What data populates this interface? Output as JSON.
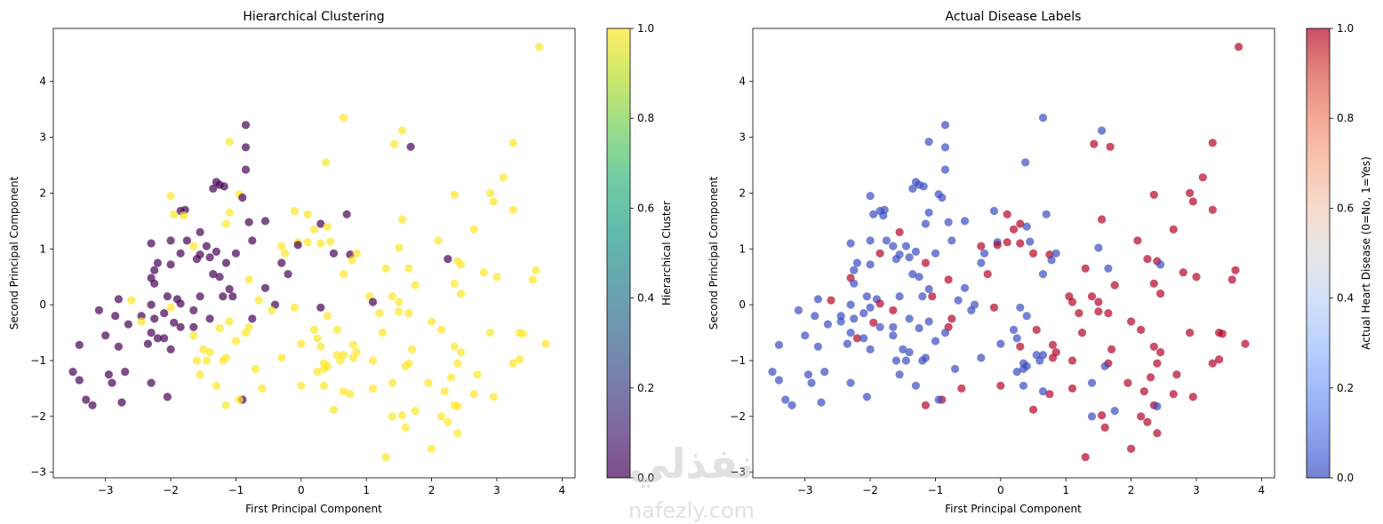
{
  "watermark": {
    "logo": "نفذلي",
    "url": "nafezly.com"
  },
  "chart_data": [
    {
      "type": "scatter",
      "title": "Hierarchical Clustering",
      "xlabel": "First Principal Component",
      "ylabel": "Second Principal Component",
      "xlim": [
        -3.8,
        4.2
      ],
      "ylim": [
        -3.1,
        4.95
      ],
      "xticks": [
        -3,
        -2,
        -1,
        0,
        1,
        2,
        3,
        4
      ],
      "yticks": [
        -3,
        -2,
        -1,
        0,
        1,
        2,
        3,
        4
      ],
      "grid": false,
      "colorbar": {
        "label": "Hierarchical Cluster",
        "colormap": "viridis",
        "range": [
          0.0,
          1.0
        ],
        "ticks": [
          "0.0",
          "0.2",
          "0.4",
          "0.6",
          "0.8",
          "1.0"
        ]
      },
      "marker_alpha": 0.7,
      "color_field": "cluster",
      "colors": {
        "0": "#440154",
        "1": "#fde725"
      }
    },
    {
      "type": "scatter",
      "title": "Actual Disease Labels",
      "xlabel": "First Principal Component",
      "ylabel": "Second Principal Component",
      "xlim": [
        -3.8,
        4.2
      ],
      "ylim": [
        -3.1,
        4.95
      ],
      "xticks": [
        -3,
        -2,
        -1,
        0,
        1,
        2,
        3,
        4
      ],
      "yticks": [
        -3,
        -2,
        -1,
        0,
        1,
        2,
        3,
        4
      ],
      "grid": false,
      "colorbar": {
        "label": "Actual Heart Disease (0=No, 1=Yes)",
        "colormap": "coolwarm",
        "range": [
          0.0,
          1.0
        ],
        "ticks": [
          "0.0",
          "0.2",
          "0.4",
          "0.6",
          "0.8",
          "1.0"
        ]
      },
      "marker_alpha": 0.7,
      "color_field": "disease",
      "colors": {
        "0": "#3b4cc0",
        "1": "#b40426"
      }
    }
  ],
  "points": {
    "fields": [
      "x",
      "y",
      "cluster",
      "disease"
    ],
    "rows": [
      [
        3.65,
        4.62,
        1,
        1
      ],
      [
        -0.85,
        3.22,
        0,
        0
      ],
      [
        0.65,
        3.35,
        1,
        0
      ],
      [
        -1.1,
        2.92,
        1,
        0
      ],
      [
        -0.85,
        2.82,
        0,
        0
      ],
      [
        1.55,
        3.12,
        1,
        0
      ],
      [
        1.43,
        2.88,
        1,
        1
      ],
      [
        1.68,
        2.83,
        0,
        1
      ],
      [
        3.25,
        2.9,
        1,
        1
      ],
      [
        0.38,
        2.55,
        1,
        0
      ],
      [
        -0.85,
        2.42,
        0,
        0
      ],
      [
        3.1,
        2.28,
        1,
        1
      ],
      [
        -1.3,
        2.2,
        0,
        0
      ],
      [
        -1.25,
        2.15,
        0,
        0
      ],
      [
        -1.18,
        2.12,
        0,
        0
      ],
      [
        -1.35,
        2.08,
        0,
        0
      ],
      [
        -2.0,
        1.95,
        1,
        0
      ],
      [
        -0.95,
        1.98,
        1,
        0
      ],
      [
        -0.9,
        1.92,
        0,
        0
      ],
      [
        2.35,
        1.97,
        1,
        1
      ],
      [
        2.9,
        2.0,
        1,
        1
      ],
      [
        2.95,
        1.85,
        1,
        1
      ],
      [
        -1.85,
        1.68,
        0,
        0
      ],
      [
        -1.78,
        1.7,
        0,
        0
      ],
      [
        -1.95,
        1.62,
        1,
        0
      ],
      [
        -1.8,
        1.6,
        1,
        0
      ],
      [
        -1.1,
        1.65,
        1,
        0
      ],
      [
        -0.1,
        1.68,
        1,
        0
      ],
      [
        0.1,
        1.62,
        1,
        1
      ],
      [
        0.7,
        1.62,
        0,
        0
      ],
      [
        1.55,
        1.53,
        1,
        1
      ],
      [
        3.25,
        1.7,
        1,
        1
      ],
      [
        -0.55,
        1.5,
        0,
        0
      ],
      [
        -0.8,
        1.48,
        0,
        0
      ],
      [
        -1.15,
        1.45,
        1,
        0
      ],
      [
        0.3,
        1.45,
        0,
        1
      ],
      [
        0.4,
        1.4,
        1,
        0
      ],
      [
        0.2,
        1.35,
        1,
        1
      ],
      [
        2.65,
        1.35,
        1,
        1
      ],
      [
        -1.55,
        1.3,
        0,
        1
      ],
      [
        -2.0,
        1.15,
        0,
        0
      ],
      [
        -1.75,
        1.15,
        0,
        0
      ],
      [
        -2.3,
        1.1,
        0,
        0
      ],
      [
        -1.65,
        1.05,
        1,
        0
      ],
      [
        -0.75,
        1.15,
        0,
        0
      ],
      [
        -0.05,
        1.12,
        1,
        0
      ],
      [
        0.1,
        1.12,
        1,
        1
      ],
      [
        -0.05,
        1.07,
        0,
        1
      ],
      [
        -0.3,
        1.05,
        1,
        1
      ],
      [
        0.3,
        1.1,
        1,
        1
      ],
      [
        0.45,
        1.13,
        1,
        0
      ],
      [
        2.1,
        1.15,
        1,
        1
      ],
      [
        -1.45,
        1.05,
        0,
        0
      ],
      [
        -1.3,
        0.95,
        0,
        0
      ],
      [
        -1.55,
        0.9,
        0,
        0
      ],
      [
        -1.0,
        0.92,
        0,
        0
      ],
      [
        -1.85,
        0.92,
        0,
        1
      ],
      [
        -1.4,
        0.85,
        0,
        0
      ],
      [
        -1.6,
        0.82,
        0,
        0
      ],
      [
        0.5,
        0.92,
        0,
        1
      ],
      [
        0.75,
        0.9,
        0,
        1
      ],
      [
        0.85,
        0.92,
        1,
        0
      ],
      [
        -0.25,
        0.92,
        1,
        0
      ],
      [
        0.78,
        0.8,
        1,
        0
      ],
      [
        1.5,
        1.02,
        1,
        0
      ],
      [
        -2.2,
        0.75,
        0,
        0
      ],
      [
        -2.0,
        0.72,
        0,
        0
      ],
      [
        -1.15,
        0.75,
        0,
        1
      ],
      [
        -0.3,
        0.75,
        0,
        0
      ],
      [
        2.25,
        0.82,
        0,
        1
      ],
      [
        2.4,
        0.78,
        1,
        1
      ],
      [
        2.45,
        0.72,
        1,
        0
      ],
      [
        1.65,
        0.65,
        1,
        0
      ],
      [
        -2.25,
        0.62,
        0,
        0
      ],
      [
        -1.35,
        0.55,
        0,
        0
      ],
      [
        1.3,
        0.65,
        1,
        1
      ],
      [
        -0.2,
        0.55,
        0,
        1
      ],
      [
        2.8,
        0.58,
        1,
        1
      ],
      [
        3.6,
        0.62,
        1,
        1
      ],
      [
        -2.3,
        0.48,
        0,
        1
      ],
      [
        -2.25,
        0.38,
        0,
        0
      ],
      [
        -1.25,
        0.5,
        0,
        0
      ],
      [
        -0.8,
        0.45,
        1,
        1
      ],
      [
        0.65,
        0.55,
        1,
        0
      ],
      [
        3.0,
        0.5,
        1,
        1
      ],
      [
        3.55,
        0.45,
        1,
        1
      ],
      [
        -1.1,
        0.28,
        0,
        0
      ],
      [
        -0.55,
        0.3,
        0,
        0
      ],
      [
        2.35,
        0.38,
        1,
        1
      ],
      [
        1.75,
        0.35,
        1,
        1
      ],
      [
        -2.8,
        0.1,
        0,
        0
      ],
      [
        -2.6,
        0.08,
        1,
        1
      ],
      [
        -1.55,
        0.15,
        0,
        0
      ],
      [
        -1.2,
        0.15,
        0,
        0
      ],
      [
        -1.05,
        0.15,
        0,
        1
      ],
      [
        -2.05,
        0.15,
        0,
        0
      ],
      [
        -1.9,
        0.1,
        0,
        0
      ],
      [
        -0.65,
        0.08,
        1,
        0
      ],
      [
        1.05,
        0.15,
        1,
        1
      ],
      [
        1.4,
        0.15,
        1,
        1
      ],
      [
        2.45,
        0.2,
        1,
        1
      ],
      [
        1.1,
        0.05,
        0,
        1
      ],
      [
        1.5,
        0.05,
        1,
        1
      ],
      [
        -2.3,
        0.0,
        0,
        0
      ],
      [
        -1.85,
        0.02,
        0,
        1
      ],
      [
        -0.4,
        0.0,
        0,
        0
      ],
      [
        -0.1,
        -0.05,
        1,
        1
      ],
      [
        -3.1,
        -0.1,
        0,
        0
      ],
      [
        -2.0,
        -0.05,
        1,
        0
      ],
      [
        -2.1,
        -0.15,
        0,
        0
      ],
      [
        -1.65,
        -0.1,
        0,
        1
      ],
      [
        -0.45,
        -0.1,
        1,
        0
      ],
      [
        0.3,
        -0.05,
        0,
        0
      ],
      [
        1.2,
        -0.15,
        1,
        1
      ],
      [
        1.5,
        -0.12,
        1,
        1
      ],
      [
        1.65,
        -0.15,
        1,
        1
      ],
      [
        -2.85,
        -0.2,
        0,
        0
      ],
      [
        -2.45,
        -0.2,
        0,
        0
      ],
      [
        -2.25,
        -0.25,
        0,
        0
      ],
      [
        -1.4,
        -0.25,
        0,
        0
      ],
      [
        -1.1,
        -0.3,
        1,
        0
      ],
      [
        -0.75,
        -0.25,
        0,
        1
      ],
      [
        0.4,
        -0.2,
        1,
        0
      ],
      [
        2.0,
        -0.3,
        1,
        1
      ],
      [
        -2.65,
        -0.35,
        0,
        0
      ],
      [
        -2.45,
        -0.3,
        1,
        0
      ],
      [
        -1.95,
        -0.32,
        0,
        1
      ],
      [
        -0.8,
        -0.4,
        1,
        1
      ],
      [
        2.15,
        -0.45,
        1,
        1
      ],
      [
        -1.65,
        -0.4,
        0,
        0
      ],
      [
        -1.85,
        -0.4,
        0,
        0
      ],
      [
        -1.25,
        -0.42,
        1,
        0
      ],
      [
        0.2,
        -0.45,
        1,
        0
      ],
      [
        0.55,
        -0.45,
        1,
        1
      ],
      [
        1.25,
        -0.5,
        1,
        1
      ],
      [
        -2.3,
        -0.5,
        0,
        0
      ],
      [
        -2.2,
        -0.6,
        0,
        1
      ],
      [
        -0.85,
        -0.5,
        1,
        0
      ],
      [
        2.9,
        -0.5,
        1,
        1
      ],
      [
        3.35,
        -0.5,
        1,
        1
      ],
      [
        3.4,
        -0.52,
        1,
        1
      ],
      [
        -3.0,
        -0.55,
        0,
        0
      ],
      [
        -2.35,
        -0.7,
        0,
        0
      ],
      [
        -2.1,
        -0.6,
        0,
        0
      ],
      [
        -1.65,
        -0.55,
        1,
        0
      ],
      [
        -1.0,
        -0.65,
        1,
        0
      ],
      [
        0.25,
        -0.6,
        1,
        0
      ],
      [
        1.7,
        -0.8,
        1,
        1
      ],
      [
        2.45,
        -0.85,
        1,
        1
      ],
      [
        3.75,
        -0.7,
        1,
        1
      ],
      [
        -3.4,
        -0.72,
        0,
        0
      ],
      [
        -2.8,
        -0.75,
        0,
        0
      ],
      [
        -2.0,
        -0.8,
        0,
        0
      ],
      [
        -1.5,
        -0.8,
        1,
        0
      ],
      [
        -1.4,
        -0.85,
        1,
        0
      ],
      [
        0.0,
        -0.7,
        1,
        0
      ],
      [
        0.3,
        -0.75,
        1,
        1
      ],
      [
        0.8,
        -0.72,
        1,
        1
      ],
      [
        -1.45,
        -1.0,
        1,
        0
      ],
      [
        -1.15,
        -0.95,
        1,
        0
      ],
      [
        -0.3,
        -0.95,
        1,
        0
      ],
      [
        0.65,
        -0.9,
        1,
        0
      ],
      [
        0.85,
        -0.85,
        1,
        1
      ],
      [
        0.8,
        -0.95,
        1,
        1
      ],
      [
        1.1,
        -1.0,
        1,
        1
      ],
      [
        2.35,
        -0.75,
        1,
        1
      ],
      [
        -3.5,
        -1.2,
        0,
        0
      ],
      [
        -2.95,
        -1.25,
        0,
        0
      ],
      [
        -2.7,
        -1.2,
        0,
        0
      ],
      [
        -1.6,
        -1.0,
        1,
        0
      ],
      [
        -1.2,
        -1.0,
        1,
        0
      ],
      [
        0.35,
        -1.05,
        1,
        0
      ],
      [
        0.4,
        -1.1,
        1,
        0
      ],
      [
        0.55,
        -0.9,
        1,
        0
      ],
      [
        0.6,
        -1.0,
        1,
        0
      ],
      [
        1.65,
        -1.05,
        1,
        1
      ],
      [
        1.6,
        -1.1,
        1,
        0
      ],
      [
        2.4,
        -1.05,
        1,
        1
      ],
      [
        3.25,
        -1.05,
        1,
        1
      ],
      [
        3.35,
        -0.98,
        1,
        1
      ],
      [
        -3.4,
        -1.35,
        0,
        0
      ],
      [
        -1.55,
        -1.25,
        1,
        0
      ],
      [
        -0.7,
        -1.15,
        1,
        0
      ],
      [
        0.25,
        -1.2,
        1,
        0
      ],
      [
        0.35,
        -1.15,
        1,
        0
      ],
      [
        1.4,
        -1.4,
        1,
        0
      ],
      [
        1.95,
        -1.4,
        1,
        1
      ],
      [
        2.3,
        -1.3,
        1,
        1
      ],
      [
        2.7,
        -1.25,
        1,
        1
      ],
      [
        -2.9,
        -1.4,
        0,
        0
      ],
      [
        -2.3,
        -1.4,
        0,
        0
      ],
      [
        -1.3,
        -1.45,
        1,
        0
      ],
      [
        0.0,
        -1.45,
        1,
        1
      ],
      [
        0.35,
        -1.45,
        1,
        0
      ],
      [
        1.1,
        -1.5,
        1,
        1
      ],
      [
        2.2,
        -1.55,
        1,
        1
      ],
      [
        -0.6,
        -1.5,
        1,
        1
      ],
      [
        0.65,
        -1.55,
        1,
        0
      ],
      [
        0.75,
        -1.6,
        1,
        1
      ],
      [
        2.65,
        -1.6,
        1,
        1
      ],
      [
        2.95,
        -1.65,
        1,
        1
      ],
      [
        -3.3,
        -1.7,
        0,
        0
      ],
      [
        -2.05,
        -1.65,
        0,
        0
      ],
      [
        -0.9,
        -1.7,
        0,
        1
      ],
      [
        -0.95,
        -1.7,
        1,
        0
      ],
      [
        -2.75,
        -1.75,
        0,
        0
      ],
      [
        -1.15,
        -1.8,
        1,
        1
      ],
      [
        2.35,
        -1.8,
        1,
        1
      ],
      [
        2.4,
        -1.82,
        1,
        0
      ],
      [
        -3.2,
        -1.8,
        0,
        0
      ],
      [
        0.5,
        -1.88,
        1,
        1
      ],
      [
        1.75,
        -1.9,
        1,
        0
      ],
      [
        1.55,
        -1.98,
        1,
        1
      ],
      [
        1.4,
        -2.0,
        1,
        0
      ],
      [
        2.15,
        -2.0,
        1,
        1
      ],
      [
        2.25,
        -2.1,
        1,
        1
      ],
      [
        1.6,
        -2.2,
        1,
        1
      ],
      [
        2.4,
        -2.3,
        1,
        1
      ],
      [
        2.0,
        -2.58,
        1,
        1
      ],
      [
        1.3,
        -2.73,
        1,
        1
      ]
    ]
  }
}
